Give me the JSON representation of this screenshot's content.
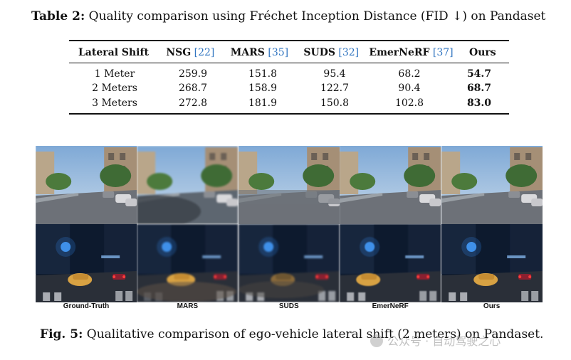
{
  "table": {
    "label": "Table 2:",
    "title": "Quality comparison using Fréchet Inception Distance (FID ↓) on Pandaset",
    "headers": [
      {
        "name": "Lateral Shift",
        "cite": ""
      },
      {
        "name": "NSG",
        "cite": "[22]"
      },
      {
        "name": "MARS",
        "cite": "[35]"
      },
      {
        "name": "SUDS",
        "cite": "[32]"
      },
      {
        "name": "EmerNeRF",
        "cite": "[37]"
      },
      {
        "name": "Ours",
        "cite": ""
      }
    ],
    "rows": [
      [
        "1 Meter",
        "259.9",
        "151.8",
        "95.4",
        "68.2",
        "54.7"
      ],
      [
        "2 Meters",
        "268.7",
        "158.9",
        "122.7",
        "90.4",
        "68.7"
      ],
      [
        "3 Meters",
        "272.8",
        "181.9",
        "150.8",
        "102.8",
        "83.0"
      ]
    ]
  },
  "figure": {
    "columns": [
      "Ground-Truth",
      "MARS",
      "SUDS",
      "EmerNeRF",
      "Ours"
    ],
    "label": "Fig. 5:",
    "caption": "Qualitative comparison of ego-vehicle lateral shift (2 meters) on Pandaset."
  },
  "watermark": "公众号 · 自动驾驶之心",
  "colors": {
    "cite": "#2f74c0",
    "sky": "#8fb3d9",
    "night": "#0d1a2e"
  }
}
